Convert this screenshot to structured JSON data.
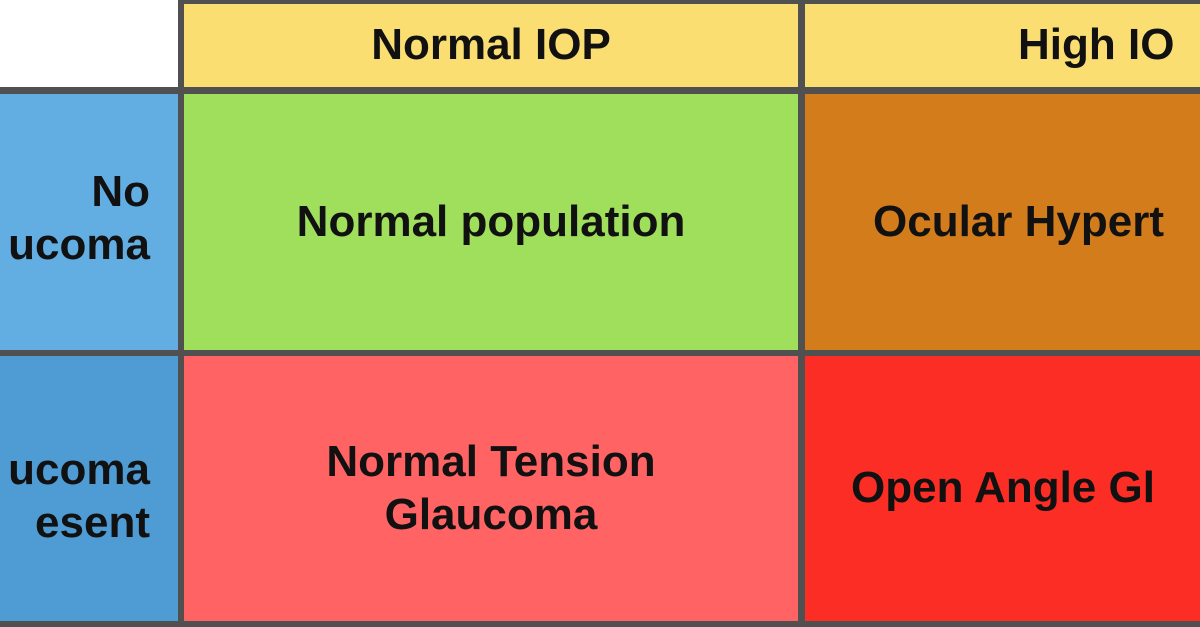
{
  "table": {
    "column_headers": [
      "Normal IOP",
      "High IOP"
    ],
    "row_headers": [
      "No Glaucoma",
      "Glaucoma Present"
    ],
    "row_header_lines": [
      [
        "No",
        "ucoma"
      ],
      [
        "ucoma",
        "esent"
      ]
    ],
    "cells": [
      [
        "Normal population",
        "Ocular Hypertension"
      ],
      [
        [
          "Normal Tension",
          "Glaucoma"
        ],
        "Open Angle Glaucoma"
      ]
    ],
    "visible": {
      "col_header_2": "High IO",
      "row1_header_lines": [
        "No",
        "ucoma"
      ],
      "row2_header_lines": [
        "ucoma",
        "esent"
      ],
      "cell_11": "Normal population",
      "cell_12": "Ocular Hypert",
      "cell_21_lines": [
        "Normal Tension",
        "Glaucoma"
      ],
      "cell_22": "Open Angle Gl"
    }
  },
  "colors": {
    "corner": "#ffffff",
    "column_header": "#fade72",
    "row_header_1": "#62ade2",
    "row_header_2": "#4f9bd3",
    "normal_population": "#9fdf5c",
    "ocular_hypertension": "#d37c1c",
    "normal_tension_glaucoma": "#ff6363",
    "open_angle_glaucoma": "#fb2d24",
    "grid_lines": "#505050"
  }
}
